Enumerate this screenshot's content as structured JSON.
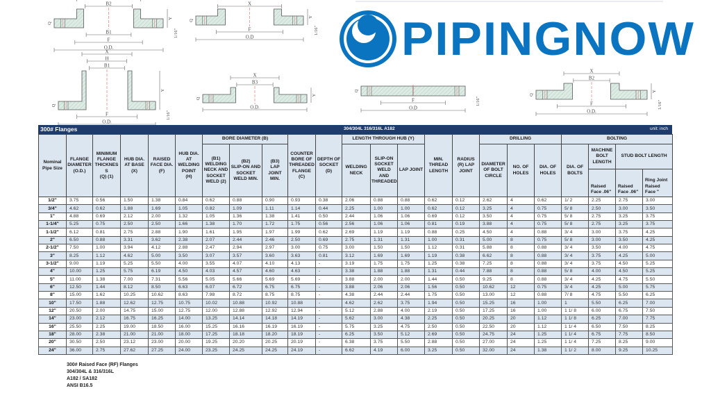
{
  "logo": {
    "text": "PIPINGNOW",
    "color": "#0a74c0"
  },
  "diagrams": [
    {
      "top": [
        "X",
        "B2"
      ],
      "bottom": [
        "B1",
        "F",
        "O.D."
      ],
      "side": [
        "Q",
        "Y",
        "1/16\""
      ]
    },
    {
      "top": [
        "X"
      ],
      "bottom": [
        "F",
        "O.D"
      ],
      "side": [
        "Q",
        "Y",
        "1/16\""
      ]
    },
    {
      "top": [
        "X",
        "H",
        "B1"
      ],
      "bottom": [
        "F",
        "O.D."
      ],
      "side": [
        "Q",
        "Y",
        "1/16\""
      ]
    },
    {
      "top": [
        "X",
        "B3"
      ],
      "bottom": [
        "O.D."
      ],
      "side": [
        "Q",
        "Y",
        ""
      ]
    },
    {
      "top": [],
      "bottom": [
        "F",
        "O.D"
      ],
      "side": [
        "Q",
        "",
        "1/16\""
      ]
    },
    {
      "top": [
        "X",
        "B2"
      ],
      "bottom": [
        "F",
        "O.D."
      ],
      "side": [
        "Q",
        "Y",
        "1/16\""
      ]
    }
  ],
  "table": {
    "title": "300# Flanges",
    "material": "304/304L 316/316L A182",
    "unit": "unit: inch",
    "headers": {
      "nominal": "Nominal\nPipe Size",
      "od": "FLANGE\nDIAMETER\n(O.D.)",
      "min_thick": "MINIMUM\nFLANGE\nTHICKNES\nS\n(Q) (1)",
      "hub_base": "HUB DIA.\nAT BASE\n(X)",
      "raised_face": "RAISED\nFACE DIA.\n(F)",
      "hub_weld": "HUB DIA.\nAT\nWELDING\nPOINT\n(H)",
      "bore_group": "BORE DIAMETER (B)",
      "b1": "(B1)\nWELDING\nNECK AND\nSOCKET\nWELD (2)",
      "b2": "(B2)\nSLIP-ON AND\nSOCKET\nWELD MIN.",
      "b3": "(B3)\nLAP JOINT\nMIN.",
      "counter_bore": "COUNTER\nBORE OF\nTHREADED\nFLANGE\n(C)",
      "depth_socket": "DEPTH OF\nSOCKET\n(D)",
      "hub_group": "LENGTH THROUGH HUB (Y)",
      "welding_neck": "WELDING\nNECK",
      "slip_on": "SLIP-ON\nSOCKET\nWELD\nAND\nTHREADED",
      "lap_joint": "LAP JOINT",
      "thread_len": "MIN.\nTHREAD\nLENGTH",
      "radius": "RADIUS\n(R) LAP\nJOINT",
      "drilling_group": "DRILLING",
      "bolt_circle": "DIAMETER\nOF BOLT\nCIRCLE",
      "no_holes": "NO. OF\nHOLES",
      "dia_holes": "DIA. OF\nHOLES",
      "bolting_group": "BOLTING",
      "dia_bolts": "DIA. OF\nBOLTS",
      "machine_bolt": "MACHINE\nBOLT\nLENGTH",
      "stud_bolt": "STUD BOLT LENGTH",
      "machine_rf": "Raised\nFace .06\"",
      "stud_rf": "Raised\nFace .06\"",
      "stud_rj": "Ring Joint\nRaised\nFace \""
    },
    "rows": [
      [
        "1/2\"",
        "3.75",
        "0.56",
        "1.50",
        "1.38",
        "0.84",
        "0.62",
        "0.88",
        "0.90",
        "0.93",
        "0.38",
        "2.06",
        "0.88",
        "0.88",
        "0.62",
        "0.12",
        "2.62",
        "4",
        "0.62",
        "1/ 2",
        "2.25",
        "2.75",
        "3.00"
      ],
      [
        "3/4\"",
        "4.62",
        "0.62",
        "1.88",
        "1.69",
        "1.05",
        "0.82",
        "1.09",
        "1.11",
        "1.14",
        "0.44",
        "2.25",
        "1.00",
        "1.00",
        "0.62",
        "0.12",
        "3.25",
        "4",
        "0.75",
        "5/ 8",
        "2.50",
        "3.00",
        "3.50"
      ],
      [
        "1\"",
        "4.88",
        "0.69",
        "2.12",
        "2.00",
        "1.32",
        "1.05",
        "1.36",
        "1.38",
        "1.41",
        "0.50",
        "2.44",
        "1.06",
        "1.06",
        "0.69",
        "0.12",
        "3.50",
        "4",
        "0.75",
        "5/ 8",
        "2.75",
        "3.25",
        "3.75"
      ],
      [
        "1-1/4\"",
        "5.25",
        "0.75",
        "2.50",
        "2.50",
        "1.66",
        "1.38",
        "1.70",
        "1.72",
        "1.75",
        "0.56",
        "2.56",
        "1.06",
        "1.06",
        "0.81",
        "0.19",
        "3.88",
        "4",
        "0.75",
        "5/ 8",
        "2.75",
        "3.25",
        "3.75"
      ],
      [
        "1-1/2\"",
        "6.12",
        "0.81",
        "2.75",
        "2.88",
        "1.90",
        "1.61",
        "1.95",
        "1.97",
        "1.99",
        "0.62",
        "2.69",
        "1.19",
        "1.19",
        "0.88",
        "0.25",
        "4.50",
        "4",
        "0.88",
        "3/ 4",
        "3.00",
        "3.75",
        "4.25"
      ],
      [
        "2\"",
        "6.50",
        "0.88",
        "3.31",
        "3.62",
        "2.38",
        "2.07",
        "2.44",
        "2.46",
        "2.50",
        "0.69",
        "2.75",
        "1.31",
        "1.31",
        "1.00",
        "0.31",
        "5.00",
        "8",
        "0.75",
        "5/ 8",
        "3.00",
        "3.50",
        "4.25"
      ],
      [
        "2-1/2\"",
        "7.50",
        "1.00",
        "3.94",
        "4.12",
        "2.88",
        "2.47",
        "2.94",
        "2.97",
        "3.00",
        "0.75",
        "3.00",
        "1.50",
        "1.50",
        "1.12",
        "0.31",
        "5.88",
        "8",
        "0.88",
        "3/ 4",
        "3.50",
        "4.00",
        "4.75"
      ],
      [
        "3\"",
        "8.25",
        "1.12",
        "4.62",
        "5.00",
        "3.50",
        "3.07",
        "3.57",
        "3.60",
        "3.63",
        "0.81",
        "3.12",
        "1.69",
        "1.69",
        "1.19",
        "0.38",
        "6.62",
        "8",
        "0.88",
        "3/ 4",
        "3.75",
        "4.25",
        "5.00"
      ],
      [
        "3-1/2\"",
        "9.00",
        "1.19",
        "5.25",
        "5.50",
        "4.00",
        "3.55",
        "4.07",
        "4.10",
        "4.13",
        "-",
        "3.19",
        "1.75",
        "1.75",
        "1.25",
        "0.38",
        "7.25",
        "8",
        "0.88",
        "3/ 4",
        "3.75",
        "4.50",
        "5.25"
      ],
      [
        "4\"",
        "10.00",
        "1.25",
        "5.75",
        "6.19",
        "4.50",
        "4.03",
        "4.57",
        "4.60",
        "4.63",
        "-",
        "3.38",
        "1.88",
        "1.88",
        "1.31",
        "0.44",
        "7.88",
        "8",
        "0.88",
        "5/ 8",
        "4.00",
        "4.50",
        "5.25"
      ],
      [
        "5\"",
        "11.00",
        "1.38",
        "7.00",
        "7.31",
        "5.56",
        "5.05",
        "5.66",
        "5.69",
        "5.69",
        "-",
        "3.88",
        "2.00",
        "2.00",
        "1.44",
        "0.50",
        "9.25",
        "8",
        "0.88",
        "3/ 4",
        "4.25",
        "4.75",
        "5.50"
      ],
      [
        "6\"",
        "12.50",
        "1.44",
        "8.12",
        "8.50",
        "6.63",
        "6.07",
        "6.72",
        "6.75",
        "6.75",
        "-",
        "3.88",
        "2.06",
        "2.06",
        "1.56",
        "0.50",
        "10.62",
        "12",
        "0.75",
        "3/ 4",
        "4.25",
        "5.00",
        "5.75"
      ],
      [
        "8\"",
        "15.00",
        "1.62",
        "10.25",
        "10.62",
        "8.63",
        "7.98",
        "8.72",
        "8.75",
        "8.75",
        "-",
        "4.38",
        "2.44",
        "2.44",
        "1.75",
        "0.50",
        "13.00",
        "12",
        "0.88",
        "7/ 8",
        "4.75",
        "5.50",
        "6.25"
      ],
      [
        "10\"",
        "17.50",
        "1.88",
        "12.62",
        "12.75",
        "10.75",
        "10.02",
        "10.88",
        "10.92",
        "10.88",
        "-",
        "4.62",
        "2.62",
        "3.75",
        "1.94",
        "0.50",
        "15.25",
        "16",
        "1.00",
        "1",
        "5.50",
        "6.25",
        "7.00"
      ],
      [
        "12\"",
        "20.50",
        "2.00",
        "14.75",
        "15.00",
        "12.75",
        "12.00",
        "12.88",
        "12.92",
        "12.94",
        "-",
        "5.12",
        "2.88",
        "4.00",
        "2.19",
        "0.50",
        "17.25",
        "16",
        "1.00",
        "1 1/ 8",
        "6.00",
        "6.75",
        "7.50"
      ],
      [
        "14\"",
        "23.00",
        "2.12",
        "16.75",
        "16.25",
        "14.00",
        "13.25",
        "14.14",
        "14.18",
        "14.19",
        "-",
        "5.62",
        "3.00",
        "4.38",
        "2.25",
        "0.50",
        "20.25",
        "20",
        "1.12",
        "1 1/ 8",
        "6.25",
        "7.00",
        "7.75"
      ],
      [
        "16\"",
        "25.50",
        "2.25",
        "19.00",
        "18.50",
        "16.00",
        "15.25",
        "16.16",
        "16.19",
        "16.19",
        "-",
        "5.75",
        "3.25",
        "4.75",
        "2.50",
        "0.50",
        "22.50",
        "20",
        "1.12",
        "1 1/ 4",
        "6.50",
        "7.50",
        "8.25"
      ],
      [
        "18\"",
        "28.00",
        "2.38",
        "21.00",
        "21.00",
        "18.00",
        "17.25",
        "18.18",
        "18.20",
        "18.19",
        "-",
        "6.25",
        "3.50",
        "5.12",
        "2.69",
        "0.50",
        "24.75",
        "24",
        "1.25",
        "1 1/ 4",
        "6.75",
        "7.75",
        "8.50"
      ],
      [
        "20\"",
        "30.50",
        "2.50",
        "23.12",
        "23.00",
        "20.00",
        "19.25",
        "20.20",
        "20.25",
        "20.19",
        "-",
        "6.38",
        "3.75",
        "5.50",
        "2.88",
        "0.50",
        "27.00",
        "24",
        "1.25",
        "1 1/ 4",
        "7.25",
        "8.25",
        "9.00"
      ],
      [
        "24\"",
        "36.00",
        "2.75",
        "27.62",
        "27.25",
        "24.00",
        "23.25",
        "24.25",
        "24.25",
        "24.19",
        "-",
        "6.62",
        "4.19",
        "6.00",
        "3.25",
        "0.50",
        "32.00",
        "24",
        "1.38",
        "1 1/ 2",
        "8.00",
        "9.25",
        "10.25"
      ]
    ]
  },
  "notes": [
    "300# Raised Face (RF) Flanges",
    "304/304L & 316/316L",
    "A182 / SA182",
    "ANSI B16.5"
  ],
  "colors": {
    "title_bar": "#1f3b6b",
    "header_bg": "#dce6f1",
    "stripe": "#dce6f1",
    "logo_blue": "#0a74c0"
  }
}
